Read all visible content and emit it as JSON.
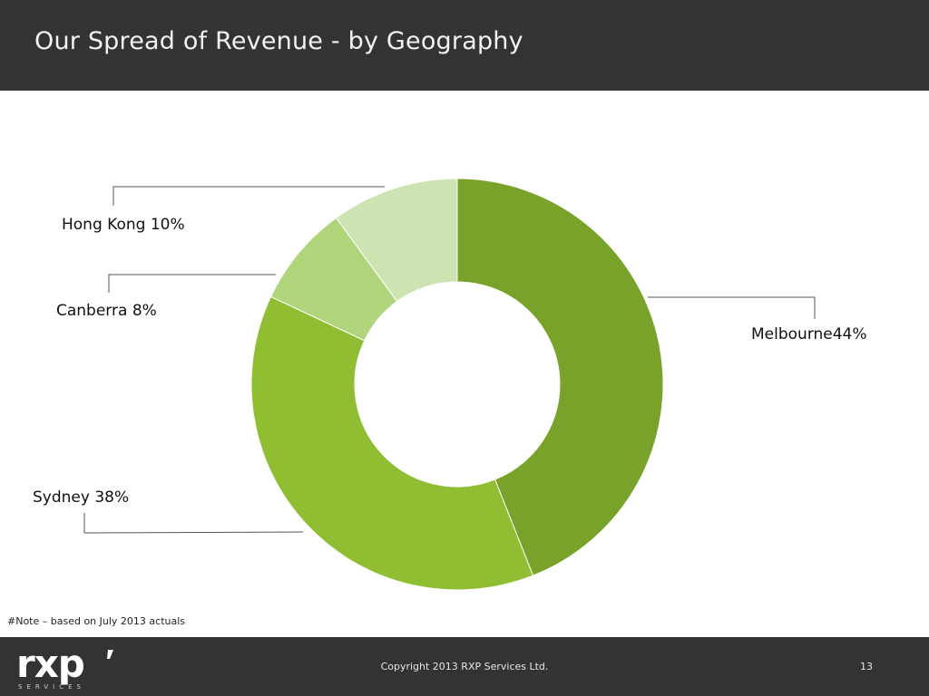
{
  "slide": {
    "title": "Our Spread of Revenue - by Geography",
    "note": "#Note – based on July 2013 actuals",
    "copyright": "Copyright 2013 RXP Services Ltd.",
    "page_number": "13",
    "logo": {
      "text": "rxp",
      "sub": "SERVICES"
    }
  },
  "chart_data": {
    "type": "pie",
    "variant": "donut",
    "title": "",
    "categories": [
      "Melbourne",
      "Sydney",
      "Canberra",
      "Hong Kong"
    ],
    "values": [
      44,
      38,
      8,
      10
    ],
    "unit": "%",
    "labels": [
      "Melbourne44%",
      "Sydney 38%",
      "Canberra 8%",
      "Hong Kong 10%"
    ],
    "colors": [
      "#79a22a",
      "#8fbe32",
      "#b0d47a",
      "#cde3b2"
    ],
    "start_angle": "12 o'clock",
    "direction": "clockwise",
    "legend": "none"
  }
}
